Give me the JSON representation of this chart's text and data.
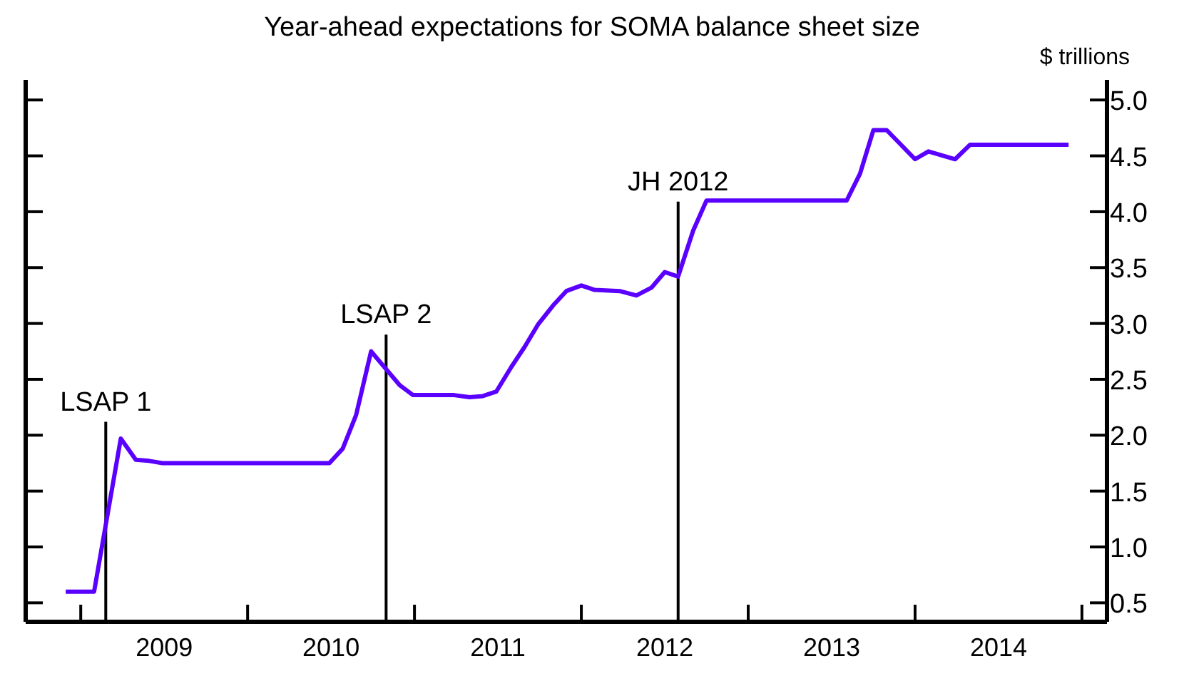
{
  "chart_data": {
    "type": "line",
    "title": "Year-ahead expectations for SOMA balance sheet size",
    "ylabel": "$ trillions",
    "x": [
      2008.91,
      2009.08,
      2009.24,
      2009.33,
      2009.41,
      2009.49,
      2010.49,
      2010.57,
      2010.65,
      2010.74,
      2010.91,
      2010.99,
      2011.23,
      2011.33,
      2011.41,
      2011.49,
      2011.58,
      2011.66,
      2011.74,
      2011.83,
      2011.91,
      2012.0,
      2012.08,
      2012.23,
      2012.33,
      2012.42,
      2012.5,
      2012.58,
      2012.67,
      2012.75,
      2013.59,
      2013.67,
      2013.75,
      2013.83,
      2014.0,
      2014.08,
      2014.24,
      2014.33,
      2014.92
    ],
    "series": [
      {
        "color": "#5a00ff",
        "values": [
          0.6,
          0.6,
          1.97,
          1.78,
          1.77,
          1.75,
          1.75,
          1.88,
          2.18,
          2.75,
          2.45,
          2.36,
          2.36,
          2.34,
          2.35,
          2.39,
          2.61,
          2.79,
          2.99,
          3.16,
          3.29,
          3.34,
          3.3,
          3.29,
          3.25,
          3.32,
          3.46,
          3.42,
          3.83,
          4.1,
          4.1,
          4.34,
          4.73,
          4.73,
          4.47,
          4.54,
          4.47,
          4.6,
          4.6
        ]
      }
    ],
    "xlim": [
      2008.67,
      2015.15
    ],
    "xticks": [
      {
        "value": 2009,
        "label": null
      },
      {
        "value": 2009.5,
        "label": "2009"
      },
      {
        "value": 2010,
        "label": null
      },
      {
        "value": 2010.5,
        "label": "2010"
      },
      {
        "value": 2011,
        "label": null
      },
      {
        "value": 2011.5,
        "label": "2011"
      },
      {
        "value": 2012,
        "label": null
      },
      {
        "value": 2012.5,
        "label": "2012"
      },
      {
        "value": 2013,
        "label": null
      },
      {
        "value": 2013.5,
        "label": "2013"
      },
      {
        "value": 2014,
        "label": null
      },
      {
        "value": 2014.5,
        "label": "2014"
      },
      {
        "value": 2015,
        "label": null
      }
    ],
    "ylim": [
      0.33,
      5.18
    ],
    "yticks": [
      {
        "value": 0.5,
        "label": "0.5"
      },
      {
        "value": 1,
        "label": "1.0"
      },
      {
        "value": 1.5,
        "label": "1.5"
      },
      {
        "value": 2,
        "label": "2.0"
      },
      {
        "value": 2.5,
        "label": "2.5"
      },
      {
        "value": 3,
        "label": "3.0"
      },
      {
        "value": 3.5,
        "label": "3.5"
      },
      {
        "value": 4,
        "label": "4.0"
      },
      {
        "value": 4.5,
        "label": "4.5"
      },
      {
        "value": 5,
        "label": "5.0"
      }
    ],
    "ref_lines": [
      {
        "axis": "x",
        "value": 2009.15,
        "color": "#000000"
      },
      {
        "axis": "x",
        "value": 2010.83,
        "color": "#000000"
      },
      {
        "axis": "x",
        "value": 2012.58,
        "color": "#000000"
      }
    ],
    "annotations": [
      {
        "text": "LSAP 1",
        "x": 2009.15,
        "y": 2.12
      },
      {
        "text": "LSAP 2",
        "x": 2010.83,
        "y": 2.9
      },
      {
        "text": "JH 2012",
        "x": 2012.58,
        "y": 4.09
      }
    ],
    "grid": false,
    "legend": false
  }
}
